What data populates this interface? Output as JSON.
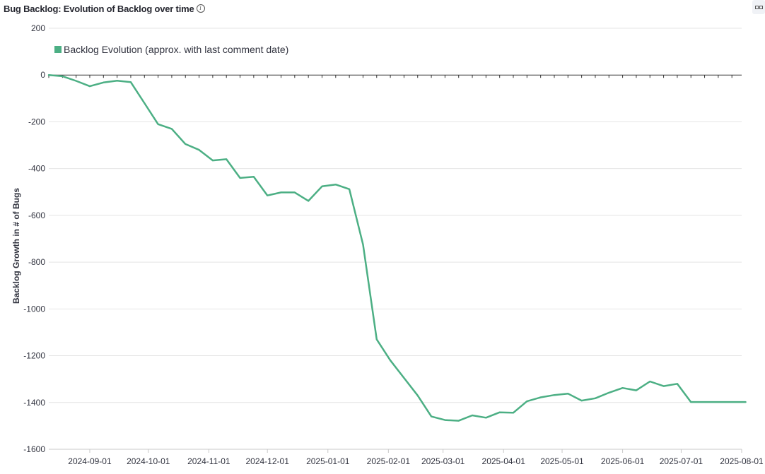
{
  "header": {
    "title": "Bug Backlog: Evolution of Backlog over time",
    "info_icon": "info-circle-icon",
    "menu_icon": "more-options-icon"
  },
  "chart_data": {
    "type": "line",
    "title": "Bug Backlog: Evolution of Backlog over time",
    "xlabel": "",
    "ylabel": "Backlog Growth in # of Bugs",
    "ylim": [
      -1600,
      200
    ],
    "yticks": [
      200,
      0,
      -200,
      -400,
      -600,
      -800,
      -1000,
      -1200,
      -1400,
      -1600
    ],
    "xlim": [
      "2024-08-11",
      "2025-08-01"
    ],
    "xticks": [
      "2024-09-01",
      "2024-10-01",
      "2024-11-01",
      "2024-12-01",
      "2025-01-01",
      "2025-02-01",
      "2025-03-01",
      "2025-04-01",
      "2025-05-01",
      "2025-06-01",
      "2025-07-01",
      "2025-08-01"
    ],
    "grid": true,
    "zero_line": true,
    "legend_position": "top-left",
    "colors": {
      "series": "#4caf84",
      "grid": "#e4e4e4",
      "zero_line": "#333333"
    },
    "series": [
      {
        "name": "Backlog Evolution (approx. with last comment date)",
        "points": [
          [
            "2024-08-11",
            0
          ],
          [
            "2024-08-18",
            -5
          ],
          [
            "2024-08-25",
            -25
          ],
          [
            "2024-09-01",
            -48
          ],
          [
            "2024-09-08",
            -32
          ],
          [
            "2024-09-15",
            -24
          ],
          [
            "2024-09-22",
            -30
          ],
          [
            "2024-09-29",
            -120
          ],
          [
            "2024-10-06",
            -210
          ],
          [
            "2024-10-13",
            -230
          ],
          [
            "2024-10-20",
            -295
          ],
          [
            "2024-10-27",
            -320
          ],
          [
            "2024-11-03",
            -365
          ],
          [
            "2024-11-10",
            -360
          ],
          [
            "2024-11-17",
            -440
          ],
          [
            "2024-11-24",
            -435
          ],
          [
            "2024-12-01",
            -515
          ],
          [
            "2024-12-08",
            -502
          ],
          [
            "2024-12-15",
            -502
          ],
          [
            "2024-12-22",
            -538
          ],
          [
            "2024-12-29",
            -476
          ],
          [
            "2025-01-05",
            -468
          ],
          [
            "2025-01-12",
            -488
          ],
          [
            "2025-01-19",
            -725
          ],
          [
            "2025-01-26",
            -1130
          ],
          [
            "2025-02-02",
            -1220
          ],
          [
            "2025-02-09",
            -1295
          ],
          [
            "2025-02-16",
            -1370
          ],
          [
            "2025-02-23",
            -1460
          ],
          [
            "2025-03-02",
            -1475
          ],
          [
            "2025-03-09",
            -1478
          ],
          [
            "2025-03-16",
            -1455
          ],
          [
            "2025-03-23",
            -1465
          ],
          [
            "2025-03-30",
            -1442
          ],
          [
            "2025-04-06",
            -1444
          ],
          [
            "2025-04-13",
            -1395
          ],
          [
            "2025-04-20",
            -1378
          ],
          [
            "2025-04-27",
            -1368
          ],
          [
            "2025-05-04",
            -1362
          ],
          [
            "2025-05-11",
            -1392
          ],
          [
            "2025-05-18",
            -1382
          ],
          [
            "2025-05-25",
            -1358
          ],
          [
            "2025-06-01",
            -1338
          ],
          [
            "2025-06-08",
            -1348
          ],
          [
            "2025-06-15",
            -1310
          ],
          [
            "2025-06-22",
            -1330
          ],
          [
            "2025-06-29",
            -1320
          ],
          [
            "2025-07-06",
            -1398
          ],
          [
            "2025-07-13",
            -1398
          ],
          [
            "2025-07-20",
            -1398
          ],
          [
            "2025-07-27",
            -1398
          ],
          [
            "2025-08-03",
            -1398
          ]
        ]
      }
    ]
  }
}
